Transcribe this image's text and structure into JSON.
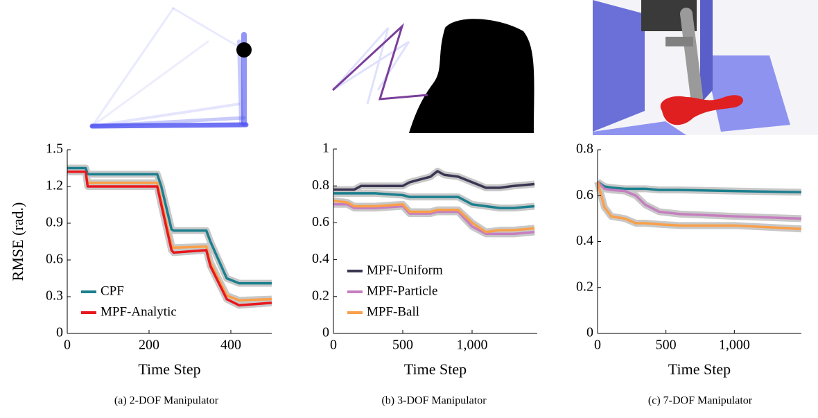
{
  "chart_data": [
    {
      "type": "line",
      "caption": "(a) 2-DOF Manipulator",
      "xlabel": "Time Step",
      "ylabel": "RMSE (rad.)",
      "x": [
        0,
        45,
        50,
        220,
        230,
        255,
        260,
        340,
        350,
        390,
        420,
        500
      ],
      "series": [
        {
          "color": "#f9a04a",
          "values": [
            1.32,
            1.32,
            1.23,
            1.23,
            1.08,
            0.72,
            0.7,
            0.71,
            0.58,
            0.31,
            0.27,
            0.28
          ]
        },
        {
          "name": "CPF",
          "color": "#1b7f8e",
          "values": [
            1.35,
            1.35,
            1.3,
            1.3,
            1.2,
            0.85,
            0.84,
            0.84,
            0.75,
            0.45,
            0.41,
            0.41
          ]
        },
        {
          "name": "MPF-Analytic",
          "color": "#e8171d",
          "values": [
            1.32,
            1.32,
            1.2,
            1.2,
            1.05,
            0.68,
            0.66,
            0.68,
            0.55,
            0.28,
            0.23,
            0.25
          ]
        }
      ],
      "xlim": [
        0,
        500
      ],
      "xticks": [
        0,
        200,
        400
      ],
      "ylim": [
        0,
        1.5
      ],
      "yticks": [
        0,
        0.3,
        0.6,
        0.9,
        1.2,
        1.5
      ],
      "legend": "lower left"
    },
    {
      "type": "line",
      "caption": "(b) 3-DOF Manipulator",
      "xlabel": "Time Step",
      "x": [
        0,
        100,
        150,
        200,
        300,
        500,
        550,
        600,
        700,
        750,
        800,
        900,
        1000,
        1100,
        1200,
        1300,
        1450
      ],
      "series": [
        {
          "name": "MPF-Uniform",
          "color": "#3b3553",
          "values": [
            0.78,
            0.78,
            0.78,
            0.8,
            0.8,
            0.8,
            0.82,
            0.83,
            0.85,
            0.88,
            0.86,
            0.85,
            0.82,
            0.79,
            0.79,
            0.8,
            0.81
          ]
        },
        {
          "color": "#1b7f8e",
          "values": [
            0.76,
            0.76,
            0.76,
            0.76,
            0.76,
            0.75,
            0.74,
            0.74,
            0.74,
            0.74,
            0.74,
            0.74,
            0.7,
            0.69,
            0.68,
            0.68,
            0.69
          ]
        },
        {
          "name": "MPF-Particle",
          "color": "#c57fbf",
          "values": [
            0.7,
            0.7,
            0.68,
            0.68,
            0.68,
            0.69,
            0.65,
            0.65,
            0.65,
            0.66,
            0.66,
            0.66,
            0.58,
            0.54,
            0.54,
            0.54,
            0.55
          ]
        },
        {
          "name": "MPF-Ball",
          "color": "#f9a04a",
          "values": [
            0.72,
            0.71,
            0.69,
            0.69,
            0.69,
            0.7,
            0.66,
            0.66,
            0.66,
            0.67,
            0.67,
            0.67,
            0.6,
            0.55,
            0.56,
            0.56,
            0.57
          ]
        }
      ],
      "xlim": [
        0,
        1470
      ],
      "xticks": [
        0,
        500,
        {
          "value": 1000,
          "label": "1,000"
        }
      ],
      "ylim": [
        0,
        1
      ],
      "yticks": [
        0,
        0.2,
        0.4,
        0.6,
        0.8,
        1
      ],
      "legend": "lower left"
    },
    {
      "type": "line",
      "caption": "(c) 7-DOF Manipulator",
      "xlabel": "Time Step",
      "x": [
        0,
        50,
        100,
        200,
        280,
        350,
        450,
        600,
        1000,
        1490
      ],
      "series": [
        {
          "color": "#1b7f8e",
          "values": [
            0.66,
            0.64,
            0.635,
            0.63,
            0.63,
            0.63,
            0.625,
            0.625,
            0.62,
            0.615
          ]
        },
        {
          "color": "#c57fbf",
          "values": [
            0.66,
            0.63,
            0.625,
            0.62,
            0.6,
            0.56,
            0.53,
            0.52,
            0.51,
            0.5
          ]
        },
        {
          "color": "#f9a04a",
          "values": [
            0.66,
            0.55,
            0.51,
            0.5,
            0.48,
            0.48,
            0.475,
            0.47,
            0.47,
            0.455
          ]
        }
      ],
      "xlim": [
        0,
        1490
      ],
      "xticks": [
        0,
        500,
        {
          "value": 1000,
          "label": "1,000"
        }
      ],
      "ylim": [
        0,
        0.8
      ],
      "yticks": [
        0,
        0.2,
        0.4,
        0.6,
        0.8
      ]
    }
  ]
}
